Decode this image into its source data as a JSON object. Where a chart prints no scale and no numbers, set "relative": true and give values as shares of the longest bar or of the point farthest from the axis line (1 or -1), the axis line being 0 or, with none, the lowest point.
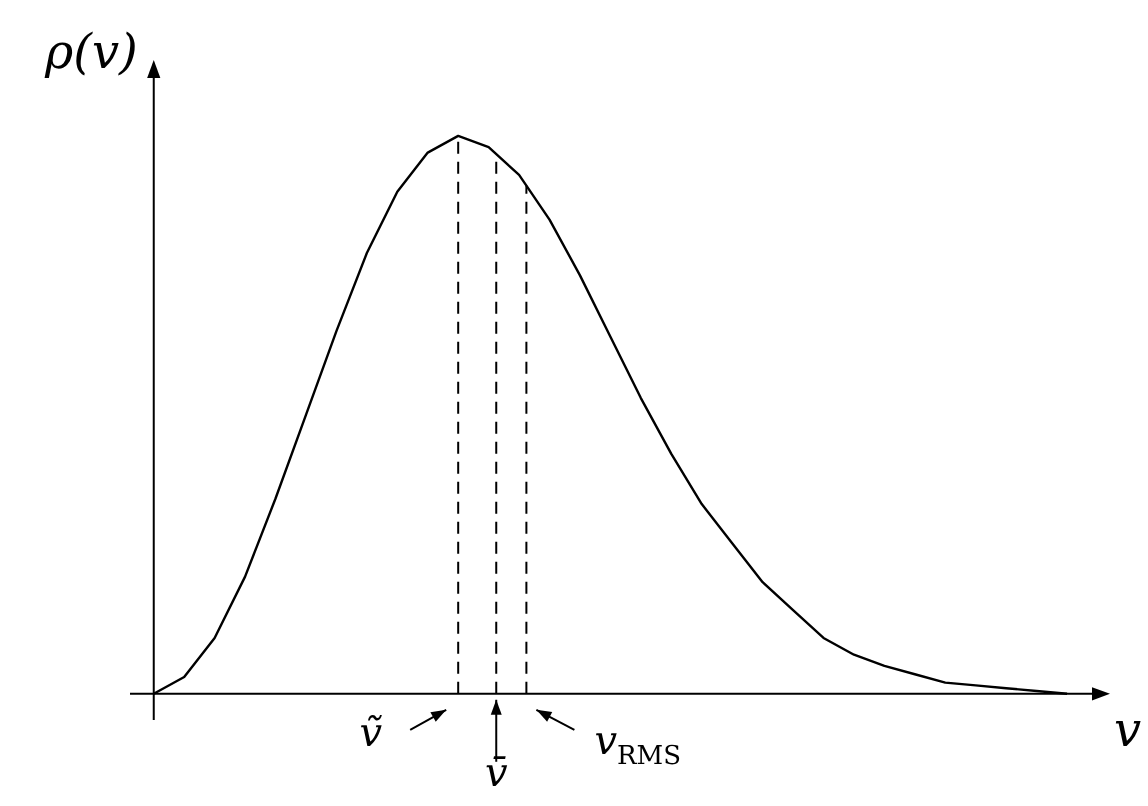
{
  "chart_data": {
    "type": "line",
    "relative": true,
    "xlabel": "v",
    "ylabel": "ρ(v)",
    "categories": [
      null,
      null,
      null,
      null,
      null,
      null,
      null,
      null,
      null,
      null,
      null,
      null,
      null,
      null,
      null,
      null,
      null,
      null,
      null,
      null,
      null,
      null,
      null,
      null,
      null,
      null,
      null,
      null,
      null,
      null,
      null
    ],
    "series": [
      {
        "color": "#000000",
        "values": [
          0,
          0.03,
          0.1,
          0.21,
          0.35,
          0.5,
          0.65,
          0.79,
          0.9,
          0.97,
          1.0,
          0.98,
          0.93,
          0.85,
          0.75,
          0.64,
          0.53,
          0.43,
          0.34,
          0.27,
          0.2,
          0.15,
          0.1,
          0.07,
          0.05,
          0.035,
          0.02,
          0.015,
          0.01,
          0.005,
          0
        ]
      }
    ],
    "annotations": [
      "ṽ",
      "v̄",
      "v$_{RMS}$"
    ],
    "grid": false,
    "legend": false,
    "marker": "none",
    "line_style": "solid"
  }
}
